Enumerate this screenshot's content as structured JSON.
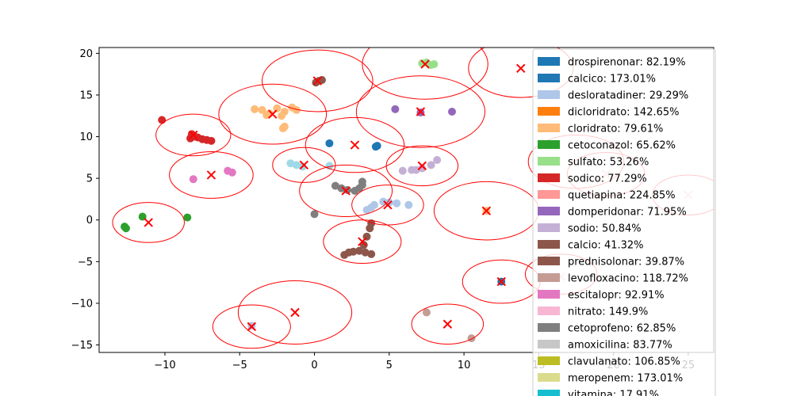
{
  "chart_data": {
    "type": "scatter",
    "title": "",
    "xlabel": "",
    "ylabel": "",
    "xlim": [
      -14.4,
      26.7
    ],
    "ylim": [
      -15.9,
      20.7
    ],
    "grid": false,
    "xticks": [
      {
        "value": -10,
        "label": "−10"
      },
      {
        "value": -5,
        "label": "−5"
      },
      {
        "value": 0,
        "label": "0"
      },
      {
        "value": 5,
        "label": "5"
      },
      {
        "value": 10,
        "label": "10"
      },
      {
        "value": 15,
        "label": "15"
      },
      {
        "value": 20,
        "label": "20"
      },
      {
        "value": 25,
        "label": "25"
      }
    ],
    "yticks": [
      {
        "value": -15,
        "label": "−15"
      },
      {
        "value": -10,
        "label": "−10"
      },
      {
        "value": -5,
        "label": "−5"
      },
      {
        "value": 0,
        "label": "0"
      },
      {
        "value": 5,
        "label": "5"
      },
      {
        "value": 10,
        "label": "10"
      },
      {
        "value": 15,
        "label": "15"
      },
      {
        "value": 20,
        "label": "20"
      }
    ],
    "legend_position": "right",
    "legend": [
      {
        "label": "drospirenonar: 82.19%",
        "color": "#1f77b4"
      },
      {
        "label": "calcico: 173.01%",
        "color": "#1f77b4"
      },
      {
        "label": "desloratadiner: 29.29%",
        "color": "#aec7e8"
      },
      {
        "label": "dicloridrato: 142.65%",
        "color": "#ff7f0e"
      },
      {
        "label": "cloridrato: 79.61%",
        "color": "#ffbb78"
      },
      {
        "label": "cetoconazol: 65.62%",
        "color": "#2ca02c"
      },
      {
        "label": "sulfato: 53.26%",
        "color": "#98df8a"
      },
      {
        "label": "sodico: 77.29%",
        "color": "#d62728"
      },
      {
        "label": "quetiapina: 224.85%",
        "color": "#ff9896"
      },
      {
        "label": "domperidonar: 71.95%",
        "color": "#9467bd"
      },
      {
        "label": "sodio: 50.84%",
        "color": "#c5b0d5"
      },
      {
        "label": "calcio: 41.32%",
        "color": "#8c564b"
      },
      {
        "label": "prednisolonar: 39.87%",
        "color": "#8c564b"
      },
      {
        "label": "levofloxacino: 118.72%",
        "color": "#c49c94"
      },
      {
        "label": "escitalopr: 92.91%",
        "color": "#e377c2"
      },
      {
        "label": "nitrato: 149.9%",
        "color": "#f7b6d2"
      },
      {
        "label": "cetoprofeno: 62.85%",
        "color": "#7f7f7f"
      },
      {
        "label": "amoxicilina: 83.77%",
        "color": "#c7c7c7"
      },
      {
        "label": "clavulanato: 106.85%",
        "color": "#bcbd22"
      },
      {
        "label": "meropenem: 173.01%",
        "color": "#dbdb8d"
      },
      {
        "label": "vitamina: 17.91%",
        "color": "#17becf"
      }
    ],
    "series": [
      {
        "color": "#1f77b4",
        "points": [
          [
            1.0,
            9.2
          ],
          [
            4.1,
            8.8
          ],
          [
            4.2,
            8.9
          ]
        ]
      },
      {
        "color": "#aec7e8",
        "points": [
          [
            3.5,
            1.2
          ],
          [
            4.0,
            1.8
          ],
          [
            4.6,
            2.2
          ],
          [
            5.5,
            2.0
          ],
          [
            6.3,
            1.8
          ],
          [
            3.8,
            1.5
          ],
          [
            5.0,
            2.1
          ],
          [
            -4.2,
            -12.7
          ]
        ]
      },
      {
        "color": "#ffbb78",
        "points": [
          [
            -4.0,
            13.3
          ],
          [
            -3.5,
            13.2
          ],
          [
            -3.0,
            12.8
          ],
          [
            -2.5,
            13.4
          ],
          [
            -2.0,
            13.0
          ],
          [
            -1.5,
            13.5
          ],
          [
            -1.2,
            13.2
          ],
          [
            -3.2,
            12.6
          ],
          [
            -2.2,
            12.5
          ],
          [
            -2.0,
            11.2
          ],
          [
            -2.1,
            11.0
          ],
          [
            11.5,
            1.1
          ]
        ]
      },
      {
        "color": "#2ca02c",
        "points": [
          [
            -12.7,
            -0.8
          ],
          [
            -12.6,
            -1.0
          ],
          [
            -11.5,
            0.4
          ],
          [
            -8.5,
            0.3
          ]
        ]
      },
      {
        "color": "#98df8a",
        "points": [
          [
            7.2,
            18.8
          ],
          [
            7.5,
            18.9
          ],
          [
            7.8,
            18.6
          ],
          [
            8.0,
            18.7
          ]
        ]
      },
      {
        "color": "#d62728",
        "points": [
          [
            -10.2,
            12.0
          ],
          [
            -8.2,
            10.3
          ],
          [
            -8.0,
            10.0
          ],
          [
            -7.8,
            9.9
          ],
          [
            -7.5,
            9.7
          ],
          [
            -7.2,
            9.6
          ],
          [
            -6.9,
            9.5
          ],
          [
            -8.3,
            9.8
          ]
        ]
      },
      {
        "color": "#9467bd",
        "points": [
          [
            5.4,
            13.3
          ],
          [
            7.1,
            12.9
          ],
          [
            9.2,
            13.0
          ]
        ]
      },
      {
        "color": "#c5b0d5",
        "points": [
          [
            5.9,
            5.9
          ],
          [
            6.5,
            6.0
          ],
          [
            7.2,
            6.2
          ],
          [
            7.8,
            6.6
          ],
          [
            8.2,
            7.2
          ],
          [
            6.8,
            6.0
          ]
        ]
      },
      {
        "color": "#8c564b",
        "points": [
          [
            0.1,
            16.5
          ],
          [
            0.3,
            16.7
          ],
          [
            0.5,
            16.8
          ],
          [
            2.0,
            -4.2
          ],
          [
            2.3,
            -3.9
          ],
          [
            2.6,
            -3.8
          ],
          [
            3.0,
            -3.7
          ],
          [
            3.4,
            -3.9
          ],
          [
            3.8,
            -4.1
          ],
          [
            3.3,
            -3.0
          ],
          [
            3.5,
            -2.0
          ],
          [
            3.7,
            -1.0
          ],
          [
            3.8,
            -0.4
          ]
        ]
      },
      {
        "color": "#c49c94",
        "points": [
          [
            7.5,
            -11.1
          ],
          [
            10.5,
            -14.2
          ]
        ]
      },
      {
        "color": "#e377c2",
        "points": [
          [
            -8.1,
            4.9
          ],
          [
            -5.8,
            5.9
          ],
          [
            -5.5,
            5.7
          ]
        ]
      },
      {
        "color": "#7f7f7f",
        "points": [
          [
            1.4,
            4.1
          ],
          [
            1.8,
            3.8
          ],
          [
            2.2,
            3.6
          ],
          [
            2.7,
            3.5
          ],
          [
            3.0,
            3.8
          ],
          [
            3.2,
            4.2
          ],
          [
            3.2,
            4.6
          ],
          [
            0.0,
            0.7
          ]
        ]
      },
      {
        "color": "#9edae5",
        "points": [
          [
            -1.6,
            6.8
          ],
          [
            -1.2,
            6.6
          ],
          [
            -0.8,
            6.4
          ],
          [
            1.0,
            6.5
          ]
        ]
      },
      {
        "color": "#1f77b4",
        "points": [
          [
            12.5,
            -7.4
          ]
        ]
      }
    ],
    "centroids": [
      [
        13.8,
        18.2
      ],
      [
        7.4,
        18.7
      ],
      [
        0.2,
        16.7
      ],
      [
        7.1,
        13.0
      ],
      [
        -2.8,
        12.7
      ],
      [
        -8.1,
        10.2
      ],
      [
        2.7,
        9.0
      ],
      [
        -6.9,
        5.4
      ],
      [
        -0.7,
        6.6
      ],
      [
        7.2,
        6.5
      ],
      [
        2.1,
        3.5
      ],
      [
        4.9,
        1.8
      ],
      [
        11.5,
        1.1
      ],
      [
        -11.1,
        -0.3
      ],
      [
        3.2,
        -2.6
      ],
      [
        12.5,
        -7.4
      ],
      [
        -1.3,
        -11.1
      ],
      [
        -4.2,
        -12.8
      ],
      [
        8.9,
        -12.5
      ]
    ],
    "circles": [
      [
        13.8,
        18.2,
        3.5
      ],
      [
        7.4,
        18.7,
        4.2
      ],
      [
        0.2,
        16.7,
        3.7
      ],
      [
        7.1,
        13.0,
        4.3
      ],
      [
        -2.8,
        12.7,
        3.6
      ],
      [
        -8.1,
        10.2,
        2.5
      ],
      [
        2.7,
        9.0,
        3.3
      ],
      [
        -6.9,
        5.4,
        2.8
      ],
      [
        -0.7,
        6.6,
        2.1
      ],
      [
        7.2,
        6.5,
        2.4
      ],
      [
        2.1,
        3.5,
        3.1
      ],
      [
        4.9,
        1.8,
        2.4
      ],
      [
        11.5,
        1.1,
        3.5
      ],
      [
        -11.1,
        -0.3,
        2.4
      ],
      [
        3.2,
        -2.6,
        2.6
      ],
      [
        12.5,
        -7.4,
        2.6
      ],
      [
        -1.3,
        -11.1,
        3.8
      ],
      [
        -4.2,
        -12.8,
        2.6
      ],
      [
        8.9,
        -12.5,
        2.4
      ],
      [
        16.5,
        -6.5,
        2.4
      ],
      [
        17.5,
        7.0,
        3.2
      ],
      [
        19.5,
        5.5,
        2.6
      ],
      [
        25.0,
        3.0,
        2.4
      ]
    ],
    "faint_centroids": [
      [
        16.5,
        -6.8
      ],
      [
        19.5,
        5.5
      ],
      [
        25.0,
        3.0
      ]
    ]
  }
}
